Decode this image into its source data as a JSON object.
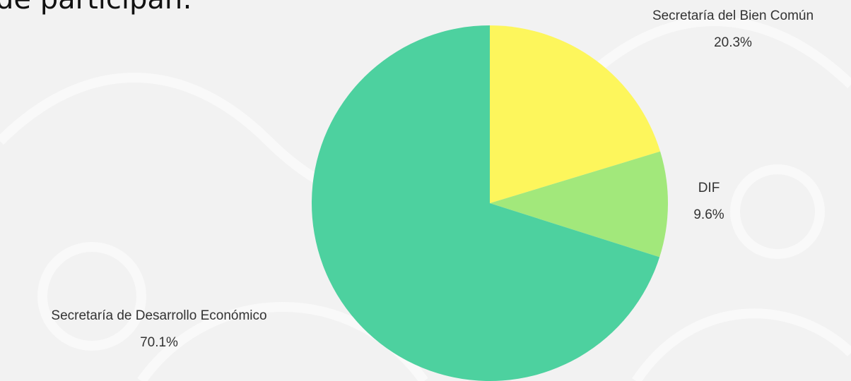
{
  "chart_data": {
    "type": "pie",
    "title": "de participan:",
    "categories": [
      "Secretaría del Bien Común",
      "DIF",
      "Secretaría de Desarrollo Económico"
    ],
    "values": [
      20.3,
      9.6,
      70.1
    ],
    "value_labels": [
      "20.3%",
      "9.6%",
      "70.1%"
    ],
    "colors": [
      "#fdf65c",
      "#a2e87b",
      "#4dd19f"
    ]
  }
}
